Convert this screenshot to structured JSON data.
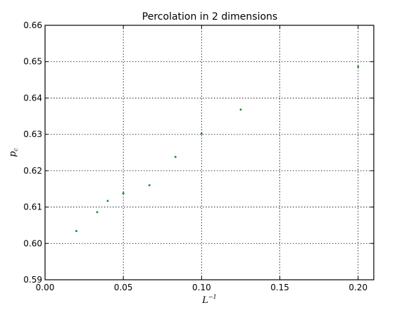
{
  "chart_data": {
    "type": "scatter",
    "title": "Percolation in 2 dimensions",
    "xlabel": "L",
    "xlabel_sup": "−1",
    "ylabel": "p",
    "ylabel_sub": "c",
    "xlim": [
      0.0,
      0.21
    ],
    "ylim": [
      0.59,
      0.66
    ],
    "xticks": [
      0.0,
      0.05,
      0.1,
      0.15,
      0.2
    ],
    "xtick_labels": [
      "0.00",
      "0.05",
      "0.10",
      "0.15",
      "0.20"
    ],
    "yticks": [
      0.59,
      0.6,
      0.61,
      0.62,
      0.63,
      0.64,
      0.65,
      0.66
    ],
    "ytick_labels": [
      "0.59",
      "0.60",
      "0.61",
      "0.62",
      "0.63",
      "0.64",
      "0.65",
      "0.66"
    ],
    "grid": true,
    "point_color": "#1a8a1a",
    "series": [
      {
        "x": [
          0.02,
          0.0333,
          0.04,
          0.05,
          0.0667,
          0.0833,
          0.1,
          0.125,
          0.2
        ],
        "y": [
          0.6034,
          0.6086,
          0.6117,
          0.6138,
          0.616,
          0.6238,
          0.6302,
          0.6368,
          0.6486
        ]
      }
    ]
  }
}
